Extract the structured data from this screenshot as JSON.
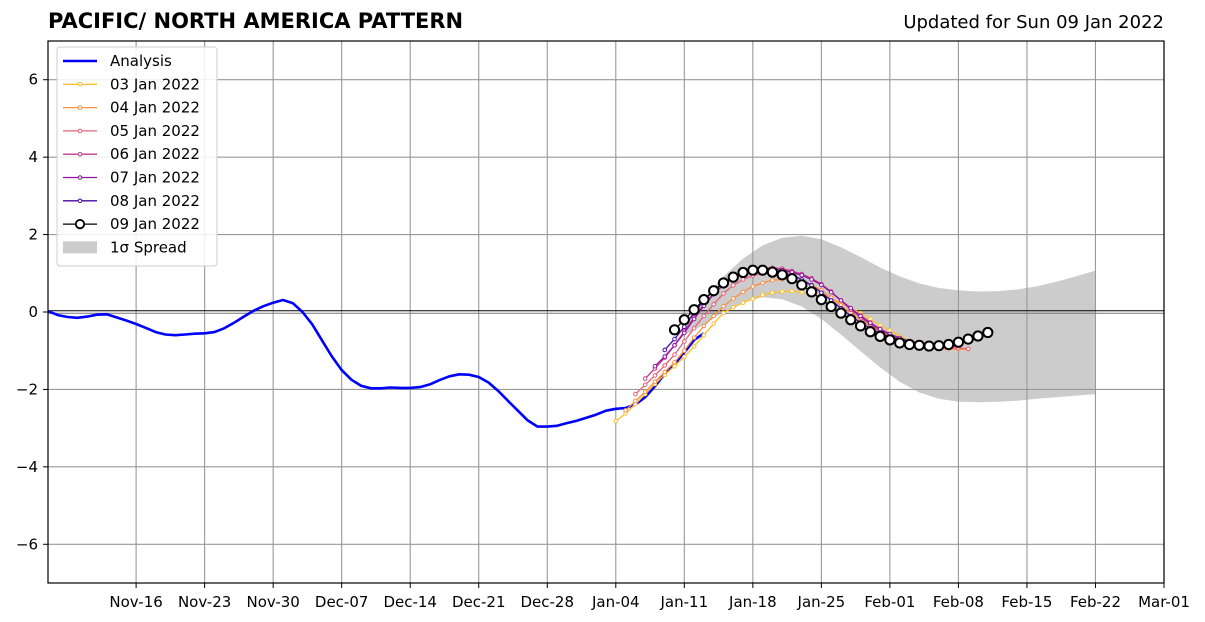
{
  "chart_data": {
    "type": "line",
    "title": "PACIFIC/ NORTH AMERICA PATTERN",
    "subtitle": "Updated for Sun 09 Jan 2022",
    "xlim": [
      "2021-11-07",
      "2022-03-01"
    ],
    "ylim": [
      -7,
      7
    ],
    "xticks": [
      {
        "date": "2021-11-16",
        "label": "Nov-16"
      },
      {
        "date": "2021-11-23",
        "label": "Nov-23"
      },
      {
        "date": "2021-11-30",
        "label": "Nov-30"
      },
      {
        "date": "2021-12-07",
        "label": "Dec-07"
      },
      {
        "date": "2021-12-14",
        "label": "Dec-14"
      },
      {
        "date": "2021-12-21",
        "label": "Dec-21"
      },
      {
        "date": "2021-12-28",
        "label": "Dec-28"
      },
      {
        "date": "2022-01-04",
        "label": "Jan-04"
      },
      {
        "date": "2022-01-11",
        "label": "Jan-11"
      },
      {
        "date": "2022-01-18",
        "label": "Jan-18"
      },
      {
        "date": "2022-01-25",
        "label": "Jan-25"
      },
      {
        "date": "2022-02-01",
        "label": "Feb-01"
      },
      {
        "date": "2022-02-08",
        "label": "Feb-08"
      },
      {
        "date": "2022-02-15",
        "label": "Feb-15"
      },
      {
        "date": "2022-02-22",
        "label": "Feb-22"
      },
      {
        "date": "2022-03-01",
        "label": "Mar-01"
      }
    ],
    "yticks": [
      {
        "value": 6,
        "label": "6"
      },
      {
        "value": 4,
        "label": "4"
      },
      {
        "value": 2,
        "label": "2"
      },
      {
        "value": 0,
        "label": "0"
      },
      {
        "value": -2,
        "label": "−2"
      },
      {
        "value": -4,
        "label": "−4"
      },
      {
        "value": -6,
        "label": "−6"
      }
    ],
    "grid": true,
    "legend_position": "top-left",
    "analysis": {
      "name": "Analysis",
      "color": "#0000ff",
      "points": [
        [
          "2021-11-07",
          0.02
        ],
        [
          "2021-11-08",
          -0.08
        ],
        [
          "2021-11-09",
          -0.13
        ],
        [
          "2021-11-10",
          -0.15
        ],
        [
          "2021-11-11",
          -0.12
        ],
        [
          "2021-11-12",
          -0.07
        ],
        [
          "2021-11-13",
          -0.06
        ],
        [
          "2021-11-14",
          -0.14
        ],
        [
          "2021-11-15",
          -0.22
        ],
        [
          "2021-11-16",
          -0.31
        ],
        [
          "2021-11-17",
          -0.41
        ],
        [
          "2021-11-18",
          -0.52
        ],
        [
          "2021-11-19",
          -0.58
        ],
        [
          "2021-11-20",
          -0.6
        ],
        [
          "2021-11-21",
          -0.58
        ],
        [
          "2021-11-22",
          -0.56
        ],
        [
          "2021-11-23",
          -0.55
        ],
        [
          "2021-11-24",
          -0.52
        ],
        [
          "2021-11-25",
          -0.42
        ],
        [
          "2021-11-26",
          -0.28
        ],
        [
          "2021-11-27",
          -0.12
        ],
        [
          "2021-11-28",
          0.03
        ],
        [
          "2021-11-29",
          0.15
        ],
        [
          "2021-11-30",
          0.24
        ],
        [
          "2021-12-01",
          0.31
        ],
        [
          "2021-12-02",
          0.23
        ],
        [
          "2021-12-03",
          0.0
        ],
        [
          "2021-12-04",
          -0.32
        ],
        [
          "2021-12-05",
          -0.74
        ],
        [
          "2021-12-06",
          -1.15
        ],
        [
          "2021-12-07",
          -1.5
        ],
        [
          "2021-12-08",
          -1.75
        ],
        [
          "2021-12-09",
          -1.91
        ],
        [
          "2021-12-10",
          -1.97
        ],
        [
          "2021-12-11",
          -1.97
        ],
        [
          "2021-12-12",
          -1.95
        ],
        [
          "2021-12-13",
          -1.96
        ],
        [
          "2021-12-14",
          -1.96
        ],
        [
          "2021-12-15",
          -1.94
        ],
        [
          "2021-12-16",
          -1.87
        ],
        [
          "2021-12-17",
          -1.76
        ],
        [
          "2021-12-18",
          -1.66
        ],
        [
          "2021-12-19",
          -1.61
        ],
        [
          "2021-12-20",
          -1.62
        ],
        [
          "2021-12-21",
          -1.68
        ],
        [
          "2021-12-22",
          -1.82
        ],
        [
          "2021-12-23",
          -2.04
        ],
        [
          "2021-12-24",
          -2.3
        ],
        [
          "2021-12-25",
          -2.55
        ],
        [
          "2021-12-26",
          -2.8
        ],
        [
          "2021-12-27",
          -2.96
        ],
        [
          "2021-12-28",
          -2.96
        ],
        [
          "2021-12-29",
          -2.94
        ],
        [
          "2021-12-30",
          -2.87
        ],
        [
          "2021-12-31",
          -2.81
        ],
        [
          "2022-01-01",
          -2.73
        ],
        [
          "2022-01-02",
          -2.65
        ],
        [
          "2022-01-03",
          -2.55
        ],
        [
          "2022-01-04",
          -2.5
        ],
        [
          "2022-01-05",
          -2.48
        ],
        [
          "2022-01-06",
          -2.39
        ],
        [
          "2022-01-07",
          -2.2
        ],
        [
          "2022-01-08",
          -1.92
        ],
        [
          "2022-01-09",
          -1.6
        ],
        [
          "2022-01-10",
          -1.35
        ],
        [
          "2022-01-11",
          -1.05
        ],
        [
          "2022-01-12",
          -0.72
        ],
        [
          "2022-01-13",
          -0.55
        ]
      ]
    },
    "spread": {
      "name": "1σ Spread",
      "color": "#cccccc",
      "start": "2022-01-11",
      "upper": [
        -0.3,
        0.35,
        0.92,
        1.38,
        1.72,
        1.92,
        1.97,
        1.88,
        1.67,
        1.42,
        1.15,
        0.92,
        0.74,
        0.62,
        0.56,
        0.53,
        0.54,
        0.58,
        0.66,
        0.78,
        0.92,
        1.07
      ],
      "lower": [
        -0.6,
        -0.33,
        0.0,
        0.26,
        0.38,
        0.33,
        0.14,
        -0.18,
        -0.58,
        -1.01,
        -1.43,
        -1.8,
        -2.08,
        -2.24,
        -2.32,
        -2.33,
        -2.32,
        -2.29,
        -2.24,
        -2.2,
        -2.16,
        -2.12
      ]
    },
    "forecasts": [
      {
        "name": "03 Jan 2022",
        "color": "#fdbf2d",
        "start": "2022-01-04",
        "values": [
          -2.82,
          -2.62,
          -2.38,
          -2.12,
          -1.86,
          -1.62,
          -1.4,
          -1.16,
          -0.89,
          -0.6,
          -0.3,
          -0.02,
          0.12,
          0.24,
          0.34,
          0.44,
          0.5,
          0.53,
          0.54,
          0.51,
          0.46,
          0.4,
          0.34,
          0.24,
          0.1,
          -0.03,
          -0.18,
          -0.34,
          -0.48,
          -0.62,
          -0.75,
          -0.86,
          -0.9,
          -0.92,
          -0.93,
          -0.95,
          -0.96
        ]
      },
      {
        "name": "04 Jan 2022",
        "color": "#fa8f42",
        "start": "2022-01-05",
        "values": [
          -2.54,
          -2.3,
          -2.06,
          -1.8,
          -1.55,
          -1.3,
          -1.0,
          -0.66,
          -0.36,
          -0.1,
          0.15,
          0.35,
          0.52,
          0.66,
          0.75,
          0.82,
          0.85,
          0.83,
          0.78,
          0.7,
          0.56,
          0.37,
          0.17,
          -0.02,
          -0.2,
          -0.37,
          -0.52,
          -0.64,
          -0.75,
          -0.84,
          -0.9,
          -0.94,
          -0.95,
          -0.95,
          -0.96,
          -0.96
        ]
      },
      {
        "name": "05 Jan 2022",
        "color": "#e8607b",
        "start": "2022-01-06",
        "values": [
          -2.12,
          -1.88,
          -1.64,
          -1.38,
          -1.1,
          -0.76,
          -0.42,
          -0.1,
          0.2,
          0.48,
          0.69,
          0.84,
          0.94,
          1.0,
          1.03,
          1.04,
          1.02,
          0.95,
          0.85,
          0.72,
          0.53,
          0.3,
          0.1,
          -0.08,
          -0.27,
          -0.44,
          -0.57,
          -0.69,
          -0.78,
          -0.84,
          -0.88,
          -0.9,
          -0.92,
          -0.93,
          -0.95
        ]
      },
      {
        "name": "06 Jan 2022",
        "color": "#c43c8b",
        "start": "2022-01-07",
        "values": [
          -1.72,
          -1.46,
          -1.18,
          -0.86,
          -0.5,
          -0.14,
          0.2,
          0.48,
          0.72,
          0.9,
          1.02,
          1.1,
          1.14,
          1.14,
          1.12,
          1.06,
          0.98,
          0.87,
          0.72,
          0.52,
          0.3,
          0.06,
          -0.14,
          -0.32,
          -0.48,
          -0.6,
          -0.71,
          -0.79,
          -0.85,
          -0.88,
          -0.89,
          -0.89,
          -0.88
        ]
      },
      {
        "name": "07 Jan 2022",
        "color": "#8e14a1",
        "start": "2022-01-08",
        "values": [
          -1.4,
          -1.15,
          -0.86,
          -0.54,
          -0.18,
          0.16,
          0.46,
          0.7,
          0.88,
          1.0,
          1.08,
          1.11,
          1.11,
          1.08,
          1.03,
          0.95,
          0.84,
          0.7,
          0.51,
          0.3,
          0.1,
          -0.1,
          -0.28,
          -0.44,
          -0.57,
          -0.67,
          -0.75,
          -0.8,
          -0.83,
          -0.85,
          -0.85
        ]
      },
      {
        "name": "08 Jan 2022",
        "color": "#4c06a6",
        "start": "2022-01-09",
        "values": [
          -0.98,
          -0.7,
          -0.38,
          -0.02,
          0.3,
          0.56,
          0.76,
          0.91,
          1.01,
          1.06,
          1.08,
          1.06,
          1.02,
          0.95,
          0.84,
          0.69,
          0.5,
          0.3,
          0.1,
          -0.1,
          -0.27,
          -0.42,
          -0.55,
          -0.65,
          -0.72,
          -0.77,
          -0.8,
          -0.82,
          -0.83,
          -0.83
        ]
      },
      {
        "name": "09 Jan 2022",
        "color": "#000000",
        "start": "2022-01-10",
        "values": [
          -0.46,
          -0.2,
          0.06,
          0.32,
          0.55,
          0.75,
          0.9,
          1.02,
          1.08,
          1.08,
          1.03,
          0.96,
          0.86,
          0.7,
          0.52,
          0.32,
          0.14,
          -0.03,
          -0.2,
          -0.36,
          -0.51,
          -0.63,
          -0.72,
          -0.8,
          -0.84,
          -0.86,
          -0.88,
          -0.87,
          -0.84,
          -0.78,
          -0.7,
          -0.62,
          -0.53
        ]
      }
    ]
  }
}
